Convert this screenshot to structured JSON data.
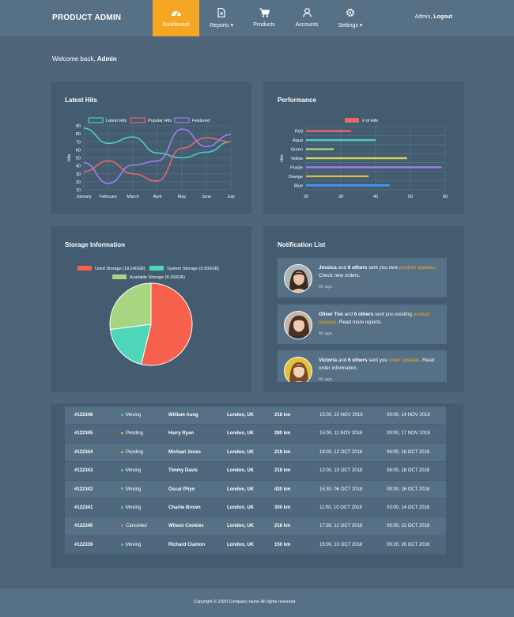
{
  "brand": "PRODUCT ADMIN",
  "nav": {
    "items": [
      {
        "label": "Dashboard",
        "icon": "tachometer-icon"
      },
      {
        "label": "Reports",
        "icon": "file-icon"
      },
      {
        "label": "Products",
        "icon": "cart-icon"
      },
      {
        "label": "Accounts",
        "icon": "user-icon"
      },
      {
        "label": "Settings",
        "icon": "gear-icon"
      }
    ],
    "user_name": "Admin,",
    "logout_label": "Logout"
  },
  "welcome": {
    "text": "Welcome back,",
    "name": "Admin"
  },
  "latest_hits": {
    "title": "Latest Hits"
  },
  "performance": {
    "title": "Performance"
  },
  "storage": {
    "title": "Storage Information"
  },
  "notifications": {
    "title": "Notification List",
    "items": [
      {
        "name": "Jessica",
        "middle": "and",
        "others": "6 others",
        "action": "sent you new",
        "link": "product updates",
        "tail": ". Check new orders.",
        "time": "6h ago."
      },
      {
        "name": "Oliver Too",
        "middle": "and",
        "others": "6 others",
        "action": "sent you existing",
        "link": "product updates",
        "tail": ". Read more reports.",
        "time": "6h ago."
      },
      {
        "name": "Victoria",
        "middle": "and",
        "others": "6 others",
        "action": "sent you",
        "link": "order updates",
        "tail": ". Read order information.",
        "time": "6h ago."
      }
    ]
  },
  "orders": [
    {
      "id": "#122346",
      "status": "Moving",
      "operator": "William Aung",
      "location": "London, UK",
      "distance": "218 km",
      "start": "15:00, 10 NOV 2018",
      "end": "09:00, 14 NOV 2018"
    },
    {
      "id": "#122345",
      "status": "Pending",
      "operator": "Harry Ryan",
      "location": "London, UK",
      "distance": "280 km",
      "start": "15:00, 11 NOV 2018",
      "end": "09:00, 17 NOV 2018"
    },
    {
      "id": "#122344",
      "status": "Pending",
      "operator": "Michael Jones",
      "location": "London, UK",
      "distance": "218 km",
      "start": "18:00, 12 OCT 2018",
      "end": "06:00, 18 OCT 2018"
    },
    {
      "id": "#122343",
      "status": "Moving",
      "operator": "Timmy Davis",
      "location": "London, UK",
      "distance": "218 km",
      "start": "12:00, 10 OCT 2018",
      "end": "08:00, 18 OCT 2018"
    },
    {
      "id": "#122342",
      "status": "Moving",
      "operator": "Oscar Phyo",
      "location": "London, UK",
      "distance": "420 km",
      "start": "15:30, 06 OCT 2018",
      "end": "09:30, 16 OCT 2018"
    },
    {
      "id": "#122341",
      "status": "Moving",
      "operator": "Charlie Brown",
      "location": "London, UK",
      "distance": "300 km",
      "start": "11:00, 10 OCT 2018",
      "end": "03:00, 14 OCT 2018"
    },
    {
      "id": "#122340",
      "status": "Cancelled",
      "operator": "Wilson Cookies",
      "location": "London, UK",
      "distance": "218 km",
      "start": "17:30, 12 OCT 2018",
      "end": "08:30, 22 OCT 2018"
    },
    {
      "id": "#122339",
      "status": "Moving",
      "operator": "Richard Clamon",
      "location": "London, UK",
      "distance": "150 km",
      "start": "15:00, 10 OCT 2018",
      "end": "09:20, 26 OCT 2018"
    }
  ],
  "status_colors": {
    "Moving": "#41d86b",
    "Pending": "#f5a623",
    "Cancelled": "#e86b6b"
  },
  "footer": "Copyright © 2020 Company name All rights reserved",
  "chart_data": [
    {
      "type": "line",
      "title": "Latest Hits",
      "ylabel": "Hits",
      "categories": [
        "January",
        "February",
        "March",
        "April",
        "May",
        "June",
        "July"
      ],
      "yticks": [
        10,
        20,
        30,
        40,
        50,
        60,
        70,
        80,
        90
      ],
      "ylim": [
        10,
        90
      ],
      "legend_position": "top",
      "series": [
        {
          "name": "Latest Hits",
          "color": "#4ecdc4",
          "values": [
            87,
            68,
            76,
            56,
            50,
            57,
            70
          ]
        },
        {
          "name": "Popular Hits",
          "color": "#e8656d",
          "values": [
            33,
            46,
            30,
            21,
            62,
            75,
            70
          ]
        },
        {
          "name": "Featured",
          "color": "#a37cf0",
          "values": [
            44,
            18,
            41,
            46,
            86,
            64,
            79
          ]
        }
      ]
    },
    {
      "type": "bar",
      "orientation": "horizontal",
      "title": "Performance",
      "ylabel": "Hits",
      "categories": [
        "Red",
        "Aqua",
        "Green",
        "Yellow",
        "Purple",
        "Orange",
        "Blue"
      ],
      "xticks": [
        20,
        30,
        40,
        50,
        60
      ],
      "xlim": [
        20,
        60
      ],
      "legend_position": "top",
      "series": [
        {
          "name": "# of Hits",
          "color": "#e8656d",
          "values": [
            33,
            40,
            28,
            49,
            59,
            38,
            44
          ]
        }
      ],
      "bar_colors": [
        "#e8656d",
        "#4ecdc4",
        "#a8d582",
        "#d7d768",
        "#a37cf0",
        "#d7b84f",
        "#3f9cff"
      ]
    },
    {
      "type": "pie",
      "title": "Storage Information",
      "legend_position": "top",
      "labels": [
        "Used Storage (18.240GB)",
        "System Storage (6.500GB)",
        "Available Storage (9.150GB)"
      ],
      "values": [
        18.24,
        6.5,
        9.15
      ],
      "colors": [
        "#f7604d",
        "#4ed6b8",
        "#a8d582"
      ]
    }
  ]
}
